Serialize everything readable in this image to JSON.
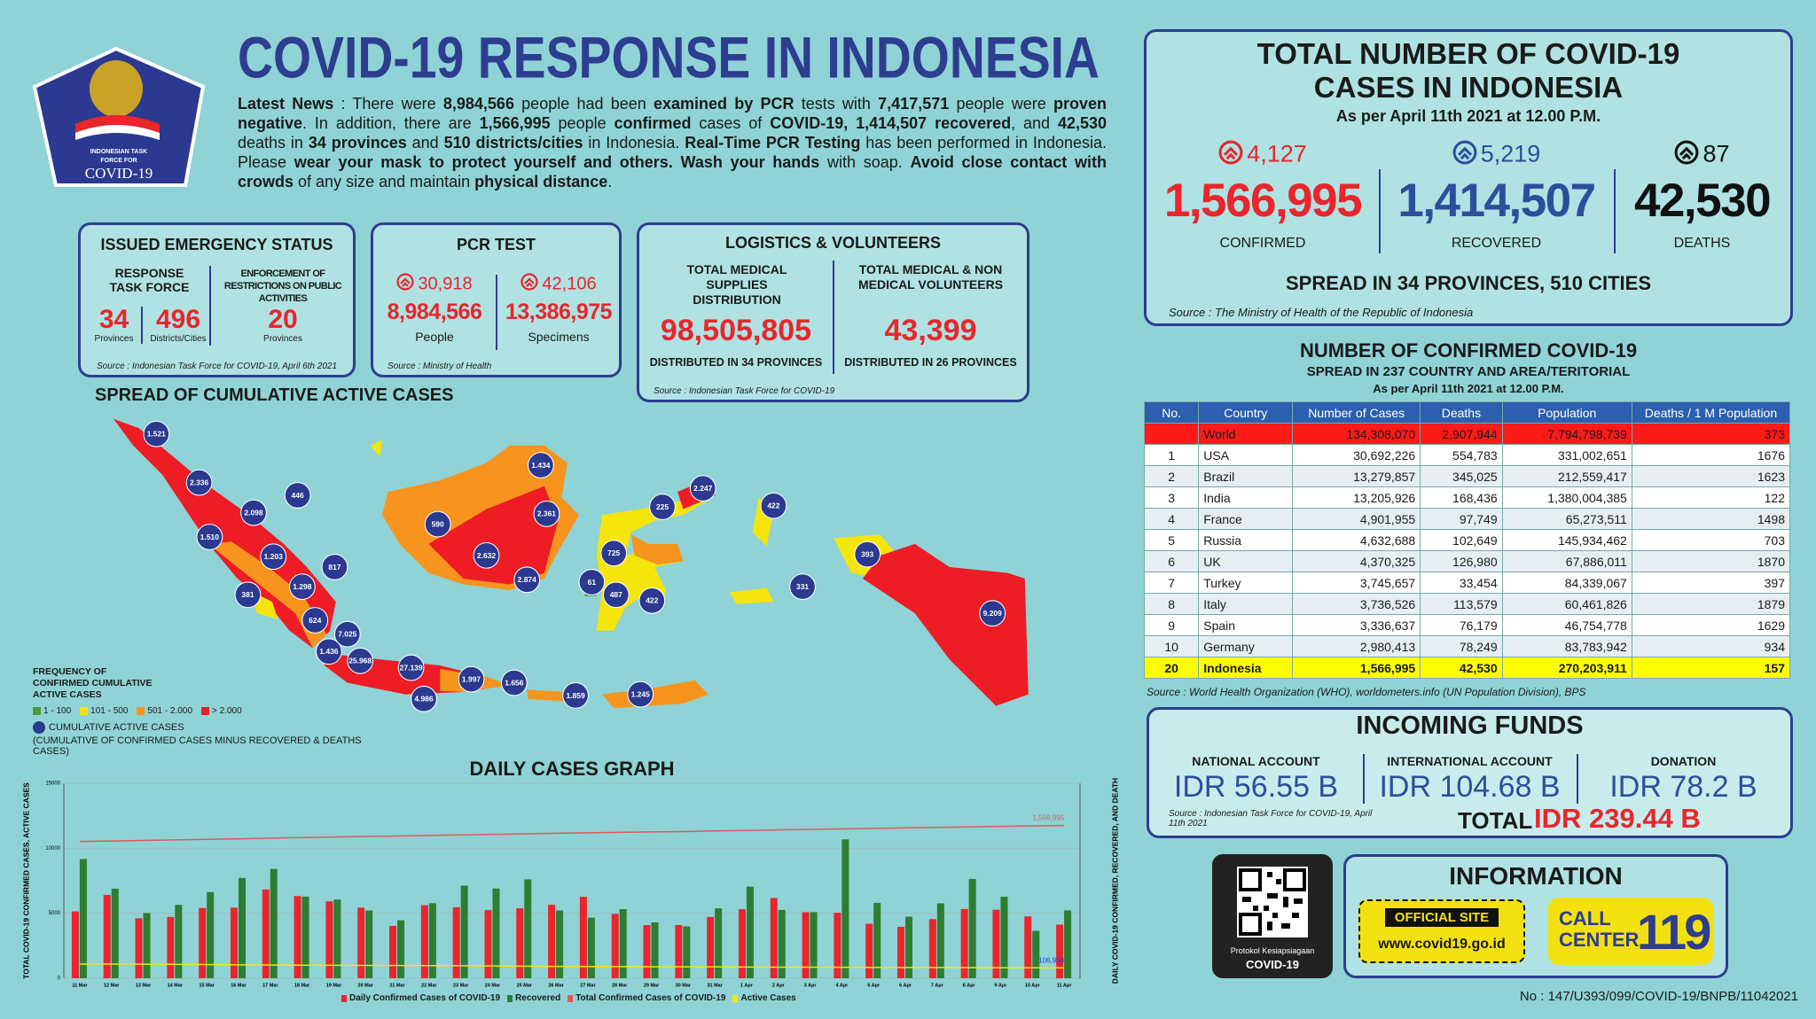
{
  "header": {
    "logo_lines": [
      "INDONESIAN TASK",
      "FORCE FOR",
      "COVID-19"
    ],
    "title": "COVID-19 RESPONSE IN INDONESIA",
    "news": [
      {
        "text": "Latest News",
        "bold": true
      },
      {
        "text": " : There were ",
        "bold": false
      },
      {
        "text": "8,984,566",
        "bold": true
      },
      {
        "text": " people had been ",
        "bold": false
      },
      {
        "text": "examined by PCR",
        "bold": true
      },
      {
        "text": " tests with ",
        "bold": false
      },
      {
        "text": "7,417,571",
        "bold": true
      },
      {
        "text": " people were ",
        "bold": false
      },
      {
        "text": "proven negative",
        "bold": true
      },
      {
        "text": ". In addition, there are ",
        "bold": false
      },
      {
        "text": "1,566,995",
        "bold": true
      },
      {
        "text": " people ",
        "bold": false
      },
      {
        "text": "confirmed",
        "bold": true
      },
      {
        "text": " cases of ",
        "bold": false
      },
      {
        "text": "COVID-19, 1,414,507 recovered",
        "bold": true
      },
      {
        "text": ", and ",
        "bold": false
      },
      {
        "text": "42,530",
        "bold": true
      },
      {
        "text": " deaths in ",
        "bold": false
      },
      {
        "text": "34 provinces",
        "bold": true
      },
      {
        "text": " and ",
        "bold": false
      },
      {
        "text": "510 districts/cities",
        "bold": true
      },
      {
        "text": " in Indonesia. ",
        "bold": false
      },
      {
        "text": "Real-Time PCR Testing",
        "bold": true
      },
      {
        "text": " has been performed in Indonesia. Please ",
        "bold": false
      },
      {
        "text": "wear your mask to protect yourself and others. Wash your hands",
        "bold": true
      },
      {
        "text": " with soap. ",
        "bold": false
      },
      {
        "text": "Avoid close contact with crowds",
        "bold": true
      },
      {
        "text": " of any size and maintain ",
        "bold": false
      },
      {
        "text": "physical distance",
        "bold": true
      },
      {
        "text": ".",
        "bold": false
      }
    ]
  },
  "emergency": {
    "title": "ISSUED EMERGENCY STATUS",
    "task_force": {
      "header": "RESPONSE TASK FORCE",
      "provinces": "34",
      "provinces_label": "Provinces",
      "districts": "496",
      "districts_label": "Districts/Cities"
    },
    "restrictions": {
      "header": "ENFORCEMENT OF RESTRICTIONS ON PUBLIC ACTIVITIES",
      "provinces": "20",
      "provinces_label": "Provinces"
    },
    "source": "Source : Indonesian Task Force for COVID-19, April 6th 2021"
  },
  "pcr": {
    "title": "PCR TEST",
    "people": {
      "delta": "30,918",
      "value": "8,984,566",
      "label": "People"
    },
    "specimens": {
      "delta": "42,106",
      "value": "13,386,975",
      "label": "Specimens"
    },
    "source": "Source : Ministry of Health"
  },
  "logistics": {
    "title": "LOGISTICS & VOLUNTEERS",
    "supplies": {
      "header": "TOTAL MEDICAL SUPPLIES DISTRIBUTION",
      "value": "98,505,805",
      "note": "DISTRIBUTED IN 34 PROVINCES"
    },
    "volunteers": {
      "header": "TOTAL MEDICAL & NON MEDICAL VOLUNTEERS",
      "value": "43,399",
      "note": "DISTRIBUTED IN 26 PROVINCES"
    },
    "source": "Source : Indonesian Task Force for COVID-19"
  },
  "map": {
    "title": "SPREAD OF CUMULATIVE ACTIVE CASES",
    "bubbles": [
      "1.521",
      "2.336",
      "446",
      "2.098",
      "1.510",
      "1.203",
      "817",
      "381",
      "1.298",
      "624",
      "7.025",
      "1.436",
      "25.968",
      "27.139",
      "4.986",
      "1.997",
      "1.656",
      "1.859",
      "1.245",
      "590",
      "1.434",
      "2.361",
      "2.632",
      "2.874",
      "225",
      "2.247",
      "725",
      "61",
      "487",
      "422",
      "422",
      "331",
      "393",
      "9.209"
    ],
    "legend": {
      "title": "FREQUENCY OF CONFIRMED CUMULATIVE ACTIVE CASES",
      "items": [
        {
          "label": "1 - 100",
          "color": "#4a9a3a"
        },
        {
          "label": "101 - 500",
          "color": "#f5e50a"
        },
        {
          "label": "501 - 2.000",
          "color": "#f7941d"
        },
        {
          "label": "> 2.000",
          "color": "#ee1c25"
        }
      ],
      "bubble_label": "CUMULATIVE ACTIVE CASES",
      "bubble_note": "(CUMULATIVE OF CONFIRMED CASES MINUS RECOVERED & DEATHS CASES)"
    }
  },
  "chart_data": {
    "type": "bar",
    "title": "DAILY CASES GRAPH",
    "y_label": "TOTAL COVID-19 CONFIRMED CASES, ACTIVE CASES",
    "y2_label": "DAILY COVID-19 CONFIRMED, RECOVERED, AND DEATH",
    "categories": [
      "11 Mar",
      "12 Mar",
      "13 Mar",
      "14 Mar",
      "15 Mar",
      "16 Mar",
      "17 Mar",
      "18 Mar",
      "19 Mar",
      "20 Mar",
      "21 Mar",
      "22 Mar",
      "23 Mar",
      "24 Mar",
      "25 Mar",
      "26 Mar",
      "27 Mar",
      "28 Mar",
      "29 Mar",
      "30 Mar",
      "31 Mar",
      "1 Apr",
      "2 Apr",
      "3 Apr",
      "4 Apr",
      "5 Apr",
      "6 Apr",
      "7 Apr",
      "8 Apr",
      "9 Apr",
      "10 Apr",
      "11 Apr"
    ],
    "ylim": [
      0,
      15000
    ],
    "yticks": [
      0,
      5000,
      10000,
      15000
    ],
    "y2lim": [
      0,
      2000000
    ],
    "grid": true,
    "series": [
      {
        "name": "Daily Confirmed Cases of COVID-19",
        "type": "bar",
        "color": "#e8262b",
        "values": [
          5144,
          6412,
          4607,
          4714,
          5404,
          5430,
          6825,
          6324,
          5913,
          5431,
          4033,
          5619,
          5464,
          5238,
          5384,
          5647,
          6267,
          4952,
          4088,
          4092,
          4711,
          5305,
          6177,
          5086,
          5041,
          4190,
          3953,
          4549,
          5325,
          5270,
          4754,
          4127
        ]
      },
      {
        "name": "Recovered",
        "type": "bar",
        "color": "#2e7d32",
        "values": [
          9175,
          6891,
          5016,
          5647,
          6630,
          7716,
          8413,
          6285,
          6057,
          5213,
          4463,
          5775,
          7131,
          6906,
          7602,
          5214,
          4660,
          5316,
          4297,
          3991,
          5378,
          7048,
          5254,
          5087,
          10685,
          5800,
          4736,
          5763,
          7640,
          6277,
          3650,
          5219
        ]
      },
      {
        "name": "Total Confirmed Cases of COVID-19",
        "type": "line",
        "axis": "y2",
        "color": "#e05a5a",
        "values": [
          1403722,
          1408000,
          1414000,
          1419000,
          1425000,
          1430000,
          1437000,
          1443000,
          1449000,
          1455000,
          1459000,
          1465000,
          1471000,
          1476000,
          1481000,
          1487000,
          1492000,
          1497000,
          1501000,
          1505000,
          1511000,
          1516000,
          1522000,
          1527000,
          1532000,
          1537000,
          1543000,
          1548000,
          1552000,
          1558000,
          1563000,
          1566995
        ],
        "value_labels": [
          null,
          null,
          null,
          null,
          null,
          null,
          null,
          null,
          null,
          null,
          null,
          null,
          null,
          null,
          null,
          null,
          null,
          null,
          null,
          null,
          null,
          null,
          null,
          null,
          null,
          null,
          null,
          null,
          null,
          null,
          null,
          "1,566,995"
        ]
      },
      {
        "name": "Active Cases",
        "type": "line",
        "axis": "y2",
        "color": "#f5e50a",
        "values": [
          146000,
          145000,
          144500,
          143000,
          141000,
          138000,
          135000,
          134000,
          133000,
          132000,
          131000,
          130000,
          128000,
          126000,
          124000,
          122000,
          120000,
          119000,
          118000,
          117500,
          117000,
          115000,
          114000,
          113500,
          112000,
          111000,
          110500,
          110000,
          109000,
          108500,
          107500,
          106958
        ],
        "value_labels": [
          null,
          null,
          null,
          null,
          null,
          null,
          null,
          null,
          null,
          null,
          null,
          null,
          null,
          null,
          null,
          null,
          null,
          null,
          null,
          null,
          null,
          null,
          null,
          null,
          null,
          null,
          null,
          null,
          null,
          null,
          null,
          "106,958"
        ]
      }
    ]
  },
  "totals": {
    "title_lines": [
      "TOTAL NUMBER OF COVID-19",
      "CASES IN INDONESIA"
    ],
    "date": "As per April 11th 2021 at 12.00 P.M.",
    "stats": [
      {
        "delta": "4,127",
        "value": "1,566,995",
        "label": "CONFIRMED",
        "color": "#e8262b"
      },
      {
        "delta": "5,219",
        "value": "1,414,507",
        "label": "RECOVERED",
        "color": "#2d4e9c"
      },
      {
        "delta": "87",
        "value": "42,530",
        "label": "DEATHS",
        "color": "#111111"
      }
    ],
    "spread": "SPREAD IN 34 PROVINCES, 510 CITIES",
    "source": "Source : The Ministry of Health of the Republic of Indonesia"
  },
  "world": {
    "title": "NUMBER OF CONFIRMED COVID-19",
    "subtitle": "SPREAD IN 237 COUNTRY AND AREA/TERITORIAL",
    "date": "As per April 11th 2021 at 12.00 P.M.",
    "columns": [
      "No.",
      "Country",
      "Number of Cases",
      "Deaths",
      "Population",
      "Deaths / 1 M Population"
    ],
    "rows": [
      [
        null,
        "World",
        "134,308,070",
        "2,907,944",
        "7,794,798,739",
        "373"
      ],
      [
        "1",
        "USA",
        "30,692,226",
        "554,783",
        "331,002,651",
        "1676"
      ],
      [
        "2",
        "Brazil",
        "13,279,857",
        "345,025",
        "212,559,417",
        "1623"
      ],
      [
        "3",
        "India",
        "13,205,926",
        "168,436",
        "1,380,004,385",
        "122"
      ],
      [
        "4",
        "France",
        "4,901,955",
        "97,749",
        "65,273,511",
        "1498"
      ],
      [
        "5",
        "Russia",
        "4,632,688",
        "102,649",
        "145,934,462",
        "703"
      ],
      [
        "6",
        "UK",
        "4,370,325",
        "126,980",
        "67,886,011",
        "1870"
      ],
      [
        "7",
        "Turkey",
        "3,745,657",
        "33,454",
        "84,339,067",
        "397"
      ],
      [
        "8",
        "Italy",
        "3,736,526",
        "113,579",
        "60,461,826",
        "1879"
      ],
      [
        "9",
        "Spain",
        "3,336,637",
        "76,179",
        "46,754,778",
        "1629"
      ],
      [
        "10",
        "Germany",
        "2,980,413",
        "78,249",
        "83,783,942",
        "934"
      ],
      [
        "20",
        "Indonesia",
        "1,566,995",
        "42,530",
        "270,203,911",
        "157"
      ]
    ],
    "source": "Source : World Health Organization (WHO), worldometers.info (UN Population Division), BPS"
  },
  "funds": {
    "title": "INCOMING FUNDS",
    "accounts": [
      {
        "label": "NATIONAL ACCOUNT",
        "value": "IDR 56.55 B"
      },
      {
        "label": "INTERNATIONAL ACCOUNT",
        "value": "IDR 104.68 B"
      },
      {
        "label": "DONATION",
        "value": "IDR 78.2 B"
      }
    ],
    "source": "Source : Indonesian Task Force for COVID-19, April 11th 2021",
    "total_label": "TOTAL",
    "total_value": "IDR 239.44 B"
  },
  "qr": {
    "caption": "Protokol Kesiapsiagaan",
    "caption2": "COVID-19"
  },
  "information": {
    "title": "INFORMATION",
    "site_label": "OFFICIAL SITE",
    "site_url": "www.covid19.go.id",
    "call_label": "CALL CENTER",
    "call_number": "119"
  },
  "footer": "No : 147/U393/099/COVID-19/BNPB/11042021"
}
